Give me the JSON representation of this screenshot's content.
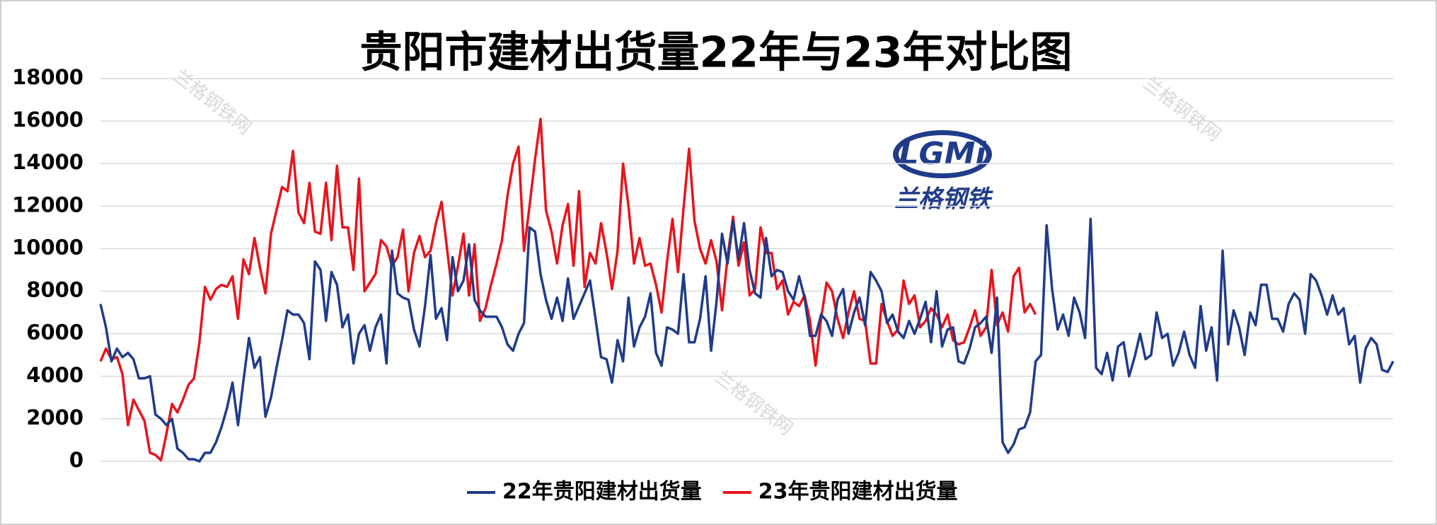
{
  "chart_data": {
    "type": "line",
    "title": "贵阳市建材出货量22年与23年对比图",
    "logo": "LGMi",
    "logo_caption": "兰格钢铁",
    "watermark": "兰格钢铁网",
    "ylim": [
      0,
      18000
    ],
    "yticks": [
      0,
      2000,
      4000,
      6000,
      8000,
      10000,
      12000,
      14000,
      16000,
      18000
    ],
    "grid": true,
    "legend": "bottom",
    "series": [
      {
        "name": "22年贵阳建材出货量",
        "color": "#1f3b8a",
        "values": [
          7400,
          6300,
          4700,
          5300,
          4900,
          5100,
          4800,
          3900,
          3900,
          4000,
          2200,
          2000,
          1700,
          2000,
          600,
          400,
          100,
          100,
          0,
          400,
          400,
          900,
          1600,
          2500,
          3700,
          1700,
          3800,
          5800,
          4400,
          4900,
          2100,
          3000,
          4400,
          5700,
          7100,
          6900,
          6900,
          6500,
          4800,
          9400,
          9000,
          6600,
          8900,
          8300,
          6300,
          6900,
          4600,
          6000,
          6400,
          5200,
          6300,
          6900,
          4600,
          9900,
          7900,
          7700,
          7600,
          6200,
          5400,
          7300,
          9700,
          6700,
          7200,
          5700,
          9600,
          8000,
          8500,
          10200,
          7600,
          7100,
          6800,
          6800,
          6800,
          6300,
          5500,
          5200,
          6000,
          6500,
          11000,
          10800,
          8800,
          7600,
          6700,
          7700,
          6600,
          8600,
          6700,
          7300,
          7900,
          8500,
          6700,
          4900,
          4800,
          3700,
          5700,
          4700,
          7700,
          5400,
          6300,
          6800,
          7900,
          5100,
          4500,
          6300,
          6200,
          6000,
          8800,
          5600,
          5600,
          6700,
          8700,
          5200,
          7500,
          10700,
          9300,
          11300,
          9500,
          11200,
          9000,
          7900,
          7700,
          10500,
          8700,
          9000,
          8900,
          8000,
          7600,
          8700,
          7700,
          5900,
          5900,
          6900,
          6600,
          5900,
          7600,
          8100,
          6000,
          7000,
          7700,
          6400,
          8900,
          8500,
          8000,
          6500,
          6900,
          6100,
          5800,
          6600,
          6000,
          6700,
          7500,
          5600,
          8000,
          5400,
          6200,
          6300,
          4700,
          4600,
          5300,
          6300,
          6500,
          6800,
          5100,
          7700,
          900,
          400,
          800,
          1500,
          1600,
          2300,
          4700,
          5000,
          11100,
          8100,
          6200,
          6900,
          5900,
          7700,
          7000,
          5800,
          11400,
          4400,
          4100,
          5100,
          3800,
          5400,
          5600,
          4000,
          4900,
          6000,
          4800,
          5000,
          7000,
          5800,
          6000,
          4500,
          5100,
          6100,
          5000,
          4400,
          7300,
          5200,
          6300,
          3800,
          9900,
          5500,
          7100,
          6300,
          5000,
          7000,
          6400,
          8300,
          8300,
          6700,
          6700,
          6100,
          7400,
          7900,
          7600,
          6000,
          8800,
          8500,
          7800,
          6900,
          7800,
          6900,
          7200,
          5500,
          5900,
          3700,
          5300,
          5800,
          5500,
          4300,
          4200,
          4700
        ]
      },
      {
        "name": "23年贵阳建材出货量",
        "color": "#e8141c",
        "values": [
          4700,
          5300,
          4800,
          4900,
          4100,
          1700,
          2900,
          2400,
          1900,
          400,
          300,
          50,
          1300,
          2700,
          2300,
          2900,
          3600,
          3900,
          5600,
          8200,
          7600,
          8100,
          8300,
          8200,
          8700,
          6700,
          9500,
          8800,
          10500,
          9100,
          7900,
          10700,
          11800,
          12900,
          12700,
          14600,
          11700,
          11200,
          13100,
          10800,
          10700,
          13100,
          10400,
          13900,
          11000,
          11000,
          9000,
          13300,
          8000,
          8400,
          8800,
          10400,
          10100,
          9200,
          9600,
          10900,
          8000,
          9800,
          10600,
          9600,
          9900,
          11200,
          12200,
          10000,
          7800,
          9200,
          10700,
          7800,
          10200,
          6600,
          7200,
          8300,
          9300,
          10400,
          12500,
          14000,
          14800,
          9900,
          12000,
          14200,
          16100,
          11800,
          10800,
          9300,
          11100,
          12100,
          9200,
          12700,
          8200,
          9800,
          9300,
          11200,
          9800,
          8100,
          9900,
          14000,
          12000,
          9300,
          10500,
          9200,
          9300,
          8300,
          7000,
          9400,
          11400,
          8900,
          11900,
          14700,
          11300,
          10000,
          9300,
          10400,
          9400,
          7100,
          9600,
          11500,
          9200,
          10300,
          7800,
          8100,
          11000,
          9800,
          9800,
          8100,
          8500,
          6900,
          7500,
          7300,
          7800,
          6600,
          4500,
          6700,
          8400,
          8000,
          6700,
          5800,
          7000,
          8000,
          6700,
          6600,
          4600,
          4600,
          7400,
          6600,
          5900,
          6200,
          8500,
          7400,
          7800,
          6300,
          6600,
          7200,
          6900,
          6300,
          6900,
          5700,
          5500,
          5600,
          6300,
          7100,
          5900,
          6300,
          9000,
          6400,
          7000,
          6100,
          8700,
          9100,
          7000,
          7400,
          6900
        ]
      }
    ]
  }
}
